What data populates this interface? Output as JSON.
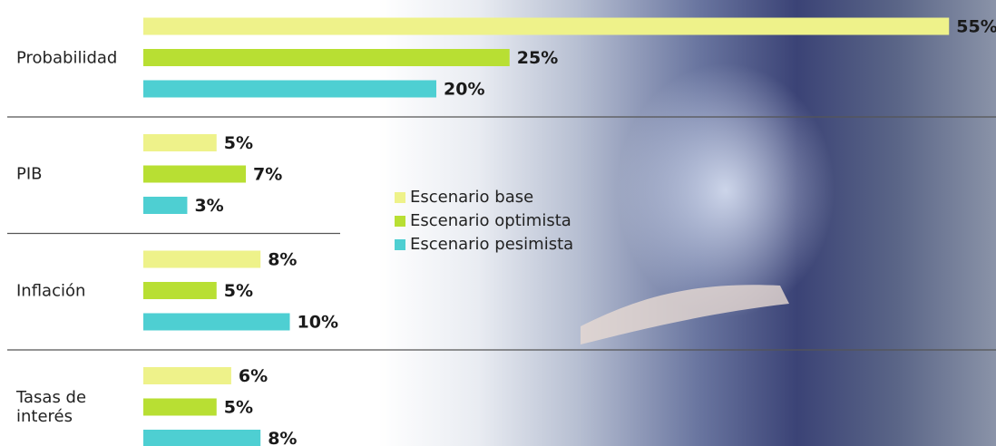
{
  "chart_data": {
    "type": "bar",
    "categories": [
      "Probabilidad",
      "PIB",
      "Inflación",
      "Tasas de interés"
    ],
    "series": [
      {
        "name": "Escenario base",
        "color": "#eef28a",
        "values": [
          55,
          5,
          8,
          6
        ],
        "value_labels": [
          "55%",
          "5%",
          "8%",
          "6%"
        ]
      },
      {
        "name": "Escenario optimista",
        "color": "#b8df33",
        "values": [
          25,
          7,
          5,
          5
        ],
        "value_labels": [
          "25%",
          "7%",
          "5%",
          "5%"
        ]
      },
      {
        "name": "Escenario pesimista",
        "color": "#4ecfd2",
        "values": [
          20,
          3,
          10,
          8
        ],
        "value_labels": [
          "20%",
          "3%",
          "10%",
          "8%"
        ]
      }
    ]
  }
}
